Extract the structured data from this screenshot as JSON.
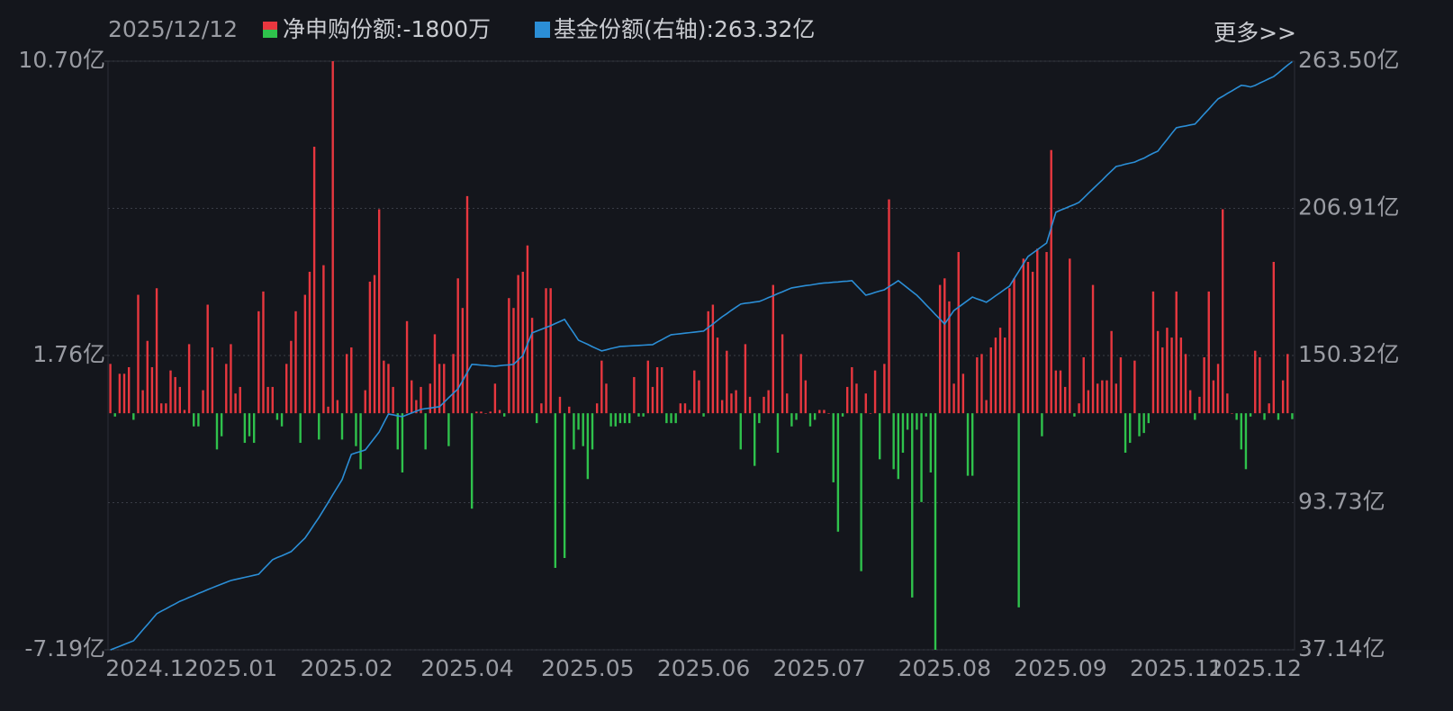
{
  "header": {
    "date": "2025/12/12",
    "more": "更多>>"
  },
  "chart_data": {
    "type": "combo",
    "categories": [
      null,
      null,
      null,
      null,
      null,
      null,
      null,
      null,
      null,
      "2024.12",
      null,
      null,
      null,
      null,
      null,
      null,
      null,
      null,
      null,
      null,
      null,
      null,
      null,
      null,
      null,
      null,
      "2025.01",
      null,
      null,
      null,
      null,
      null,
      null,
      null,
      null,
      null,
      null,
      null,
      null,
      null,
      null,
      null,
      null,
      null,
      null,
      null,
      null,
      null,
      null,
      null,
      null,
      "2025.02",
      null,
      null,
      null,
      null,
      null,
      null,
      null,
      null,
      null,
      null,
      null,
      null,
      null,
      null,
      null,
      null,
      null,
      null,
      null,
      null,
      null,
      null,
      null,
      null,
      null,
      "2025.04",
      null,
      null,
      null,
      null,
      null,
      null,
      null,
      null,
      null,
      null,
      null,
      null,
      null,
      null,
      null,
      null,
      null,
      null,
      null,
      null,
      null,
      null,
      null,
      null,
      null,
      "2025.05",
      null,
      null,
      null,
      null,
      null,
      null,
      null,
      null,
      null,
      null,
      null,
      null,
      null,
      null,
      null,
      null,
      null,
      null,
      null,
      null,
      null,
      null,
      null,
      null,
      "2025.06",
      null,
      null,
      null,
      null,
      null,
      null,
      null,
      null,
      null,
      null,
      null,
      null,
      null,
      null,
      null,
      null,
      null,
      null,
      null,
      null,
      null,
      null,
      null,
      null,
      "2025.07",
      null,
      null,
      null,
      null,
      null,
      null,
      null,
      null,
      null,
      null,
      null,
      null,
      null,
      null,
      null,
      null,
      null,
      null,
      null,
      null,
      null,
      null,
      null,
      null,
      null,
      null,
      "2025.08",
      null,
      null,
      null,
      null,
      null,
      null,
      null,
      null,
      null,
      null,
      null,
      null,
      null,
      null,
      null,
      null,
      null,
      null,
      null,
      null,
      null,
      null,
      null,
      null,
      "2025.09",
      null,
      null,
      null,
      null,
      null,
      null,
      null,
      null,
      null,
      null,
      null,
      null,
      null,
      null,
      null,
      null,
      null,
      null,
      null,
      null,
      null,
      null,
      null,
      null,
      "2025.11",
      null,
      null,
      null,
      null,
      null,
      null,
      null,
      null,
      null,
      null,
      null,
      null,
      null,
      null,
      null,
      null,
      "2025.12",
      null,
      null,
      null,
      null,
      null,
      null,
      null,
      null
    ],
    "series": [
      {
        "name": "净申购份额",
        "latest_label": ":-1800万",
        "type": "bar",
        "colors": {
          "up": "#e8373f",
          "down": "#2fc24c"
        },
        "values": [
          1.5,
          -0.1,
          1.2,
          1.2,
          1.4,
          -0.2,
          3.6,
          0.7,
          2.2,
          1.4,
          3.8,
          0.3,
          0.3,
          1.3,
          1.1,
          0.8,
          0.1,
          2.1,
          -0.4,
          -0.4,
          0.7,
          3.3,
          2.0,
          -1.1,
          -0.7,
          1.5,
          2.1,
          0.6,
          0.8,
          -0.9,
          -0.7,
          -0.9,
          3.1,
          3.7,
          0.8,
          0.8,
          -0.2,
          -0.4,
          1.5,
          2.2,
          3.1,
          -0.9,
          3.6,
          4.3,
          8.1,
          -0.8,
          4.5,
          0.2,
          10.7,
          0.4,
          -0.8,
          1.8,
          2.0,
          -1.0,
          -1.7,
          0.7,
          4.0,
          4.2,
          6.2,
          1.6,
          1.5,
          0.8,
          -1.1,
          -1.8,
          2.8,
          1.0,
          0.4,
          0.8,
          -1.1,
          0.9,
          2.4,
          1.5,
          1.5,
          -1.0,
          1.8,
          4.1,
          3.2,
          6.6,
          -2.9,
          0.05,
          0.05,
          0,
          0.05,
          0.9,
          0.1,
          -0.1,
          3.5,
          3.2,
          4.2,
          4.3,
          5.1,
          2.9,
          -0.3,
          0.3,
          3.8,
          3.8,
          -4.7,
          0.5,
          -4.4,
          0.2,
          -1.1,
          -0.5,
          -1.0,
          -2.0,
          -1.1,
          0.3,
          1.6,
          0.9,
          -0.4,
          -0.4,
          -0.3,
          -0.3,
          -0.3,
          1.1,
          -0.1,
          -0.1,
          1.6,
          0.8,
          1.4,
          1.4,
          -0.3,
          -0.3,
          -0.3,
          0.3,
          0.3,
          0.1,
          1.3,
          1.0,
          -0.1,
          3.1,
          3.3,
          2.3,
          0.4,
          1.9,
          0.6,
          0.7,
          -1.1,
          2.1,
          0.5,
          -1.6,
          -0.3,
          0.5,
          0.7,
          3.9,
          -1.2,
          2.4,
          0.6,
          -0.4,
          -0.2,
          1.8,
          1.0,
          -0.4,
          -0.2,
          0.1,
          0.1,
          0,
          -2.1,
          -3.6,
          -0.1,
          0.8,
          1.4,
          0.9,
          -4.8,
          0.6,
          0,
          1.3,
          -1.4,
          1.5,
          6.5,
          -1.7,
          -2.0,
          -1.2,
          -0.5,
          -5.6,
          -0.5,
          -2.7,
          -0.1,
          -1.8,
          -7.19,
          3.9,
          4.1,
          3.4,
          0.9,
          4.9,
          1.2,
          -1.9,
          -1.9,
          1.7,
          1.8,
          0.4,
          2.0,
          2.3,
          2.6,
          2.3,
          3.8,
          4.1,
          -5.9,
          4.7,
          4.6,
          4.3,
          5.0,
          -0.7,
          4.9,
          8.0,
          1.3,
          1.3,
          0.8,
          4.7,
          -0.1,
          0.3,
          1.7,
          0.7,
          3.9,
          0.9,
          1.0,
          1.0,
          2.5,
          0.9,
          1.7,
          -1.2,
          -0.9,
          1.6,
          -0.7,
          -0.6,
          -0.3,
          3.7,
          2.5,
          2.0,
          2.6,
          2.3,
          3.7,
          2.3,
          1.8,
          0.7,
          -0.2,
          0.5,
          1.7,
          3.7,
          1.0,
          1.5,
          6.2,
          0.6,
          0,
          -0.2,
          -1.1,
          -1.7,
          -0.1,
          1.9,
          1.7,
          -0.2,
          0.3,
          4.6,
          -0.2,
          1.0,
          1.8,
          -0.18
        ]
      },
      {
        "name": "基金份额(右轴)",
        "latest_label": ":263.32亿",
        "type": "line",
        "axis": "y2",
        "color": "#2b8ed6",
        "values": [
          37.1,
          37.8,
          38.5,
          39.2,
          39.9,
          40.6,
          42.7,
          44.8,
          46.8,
          48.9,
          51.0,
          52.0,
          52.9,
          53.9,
          54.8,
          55.8,
          56.5,
          57.3,
          58.0,
          58.8,
          59.5,
          60.3,
          61.0,
          61.7,
          62.4,
          63.1,
          63.8,
          64.2,
          64.6,
          65.0,
          65.4,
          65.8,
          66.2,
          68.1,
          69.9,
          71.8,
          72.6,
          73.3,
          74.1,
          74.9,
          76.6,
          78.4,
          80.1,
          82.7,
          85.4,
          88.0,
          90.9,
          93.8,
          96.8,
          99.7,
          102.6,
          107.5,
          112.3,
          112.9,
          113.4,
          114.0,
          116.3,
          118.6,
          120.9,
          124.4,
          127.8,
          127.5,
          127.1,
          126.8,
          127.5,
          128.2,
          128.9,
          129.6,
          129.9,
          130.1,
          130.4,
          130.6,
          132.3,
          134.1,
          135.8,
          137.5,
          140.6,
          143.8,
          146.9,
          146.8,
          146.6,
          146.5,
          146.3,
          146.2,
          146.4,
          146.6,
          146.7,
          146.9,
          148.6,
          150.3,
          154.7,
          159.0,
          159.7,
          160.4,
          161.1,
          161.8,
          162.6,
          163.4,
          164.2,
          161.5,
          158.9,
          156.2,
          155.4,
          154.6,
          153.7,
          152.9,
          152.1,
          152.5,
          153.0,
          153.4,
          153.8,
          153.9,
          154.0,
          154.1,
          154.2,
          154.3,
          154.4,
          154.5,
          155.5,
          156.4,
          157.4,
          158.3,
          158.5,
          158.7,
          158.9,
          159.1,
          159.3,
          159.5,
          159.7,
          161.1,
          162.4,
          163.8,
          165.2,
          166.4,
          167.7,
          168.9,
          170.1,
          170.4,
          170.6,
          170.9,
          171.1,
          171.8,
          172.6,
          173.3,
          174.1,
          174.8,
          175.6,
          176.3,
          176.6,
          176.9,
          177.2,
          177.4,
          177.7,
          178.0,
          178.2,
          178.3,
          178.5,
          178.6,
          178.8,
          178.9,
          179.1,
          177.2,
          175.4,
          173.5,
          174.0,
          174.6,
          175.1,
          175.6,
          176.8,
          177.9,
          179.1,
          177.7,
          176.3,
          174.9,
          173.5,
          171.7,
          169.8,
          168.0,
          166.1,
          164.3,
          162.4,
          165.0,
          167.6,
          168.9,
          170.2,
          171.5,
          172.8,
          172.1,
          171.5,
          170.8,
          172.0,
          173.3,
          174.5,
          175.8,
          177.0,
          179.9,
          182.7,
          185.6,
          188.4,
          189.7,
          191.0,
          192.3,
          193.6,
          199.5,
          205.4,
          206.2,
          206.9,
          207.7,
          208.4,
          209.2,
          210.9,
          212.7,
          214.4,
          216.1,
          217.8,
          219.6,
          221.3,
          223.0,
          223.4,
          223.9,
          224.3,
          224.7,
          225.5,
          226.2,
          227.2,
          228.1,
          228.9,
          231.2,
          233.4,
          235.7,
          237.9,
          238.3,
          238.6,
          239.0,
          239.3,
          241.2,
          243.2,
          245.1,
          247.1,
          249.0,
          250.0,
          251.1,
          252.1,
          253.2,
          254.2,
          254.0,
          253.6,
          254.2,
          255.1,
          255.9,
          256.8,
          257.6,
          259.0,
          260.5,
          262.0,
          263.32
        ]
      }
    ],
    "ylim": [
      -7.19,
      10.7
    ],
    "yticks": [
      {
        "value": 10.7,
        "label": "10.70亿"
      },
      {
        "value": 1.76,
        "label": "1.76亿"
      },
      {
        "value": -7.19,
        "label": "-7.19亿"
      }
    ],
    "y2lim": [
      37.14,
      263.5
    ],
    "y2ticks": [
      {
        "value": 37.14,
        "label": "37.14亿"
      },
      {
        "value": 93.73,
        "label": "93.73亿"
      },
      {
        "value": 150.32,
        "label": "150.32亿"
      },
      {
        "value": 206.91,
        "label": "206.91亿"
      },
      {
        "value": 263.5,
        "label": "263.50亿"
      }
    ],
    "grid": true
  }
}
